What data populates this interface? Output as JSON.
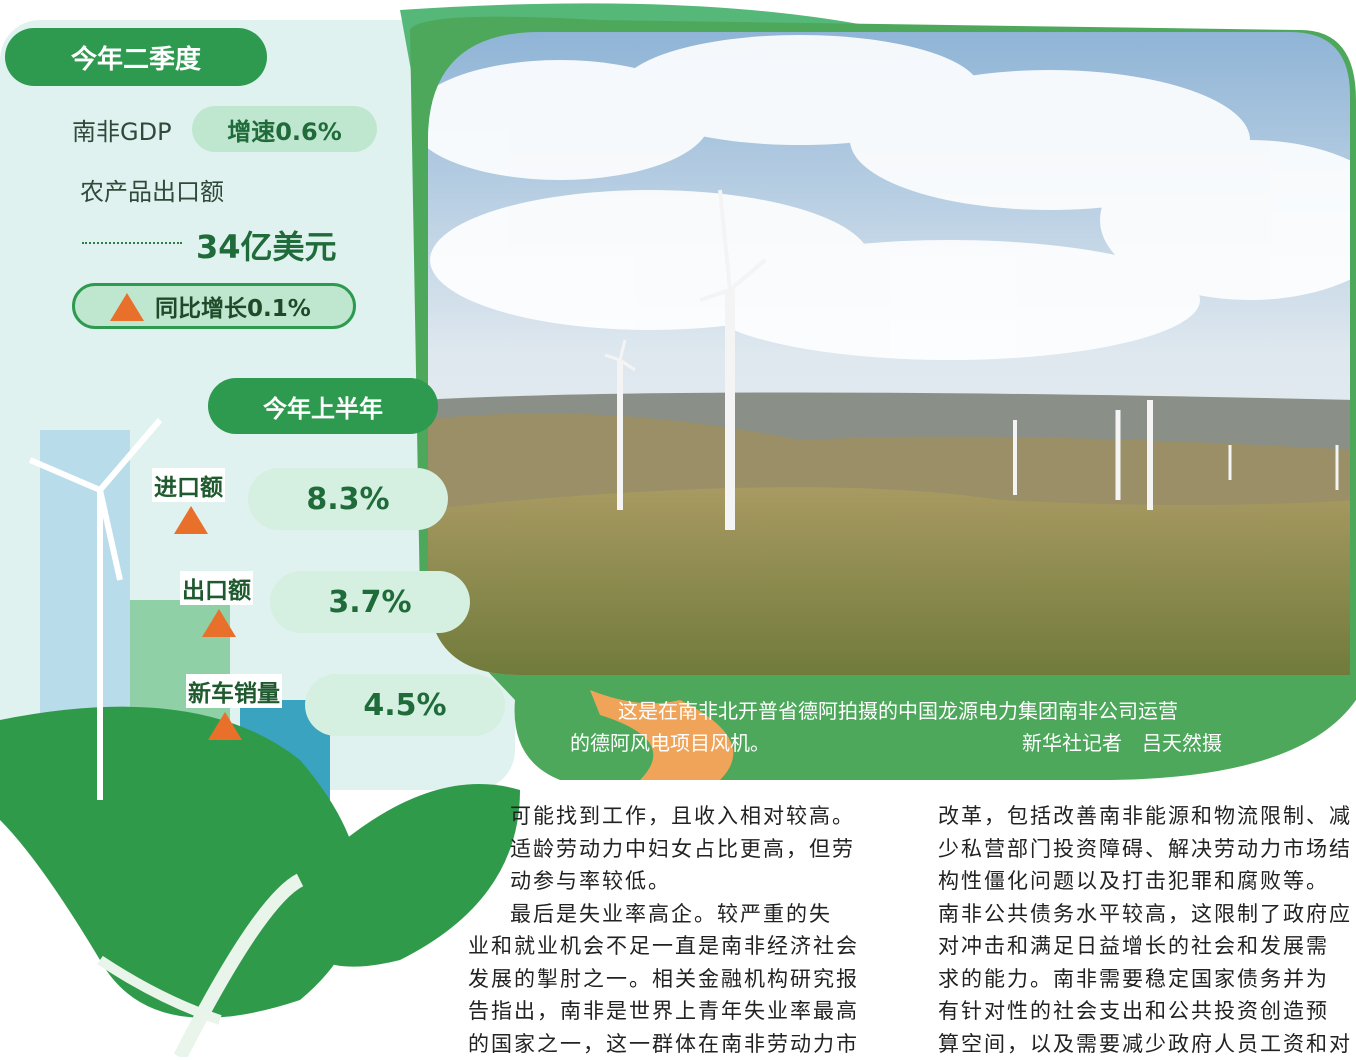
{
  "infographic": {
    "q2": {
      "title": "今年二季度",
      "gdp_label": "南非GDP",
      "gdp_growth": "增速0.6%",
      "agri_label": "农产品出口额",
      "agri_value": "34亿美元",
      "agri_change": "同比增长0.1%"
    },
    "h1": {
      "title": "今年上半年",
      "items": [
        {
          "label": "进口额",
          "value": "8.3%"
        },
        {
          "label": "出口额",
          "value": "3.7%"
        },
        {
          "label": "新车销量",
          "value": "4.5%"
        }
      ]
    }
  },
  "photo": {
    "caption_lines": [
      "这是在南非北开普省德阿拍摄的中国龙源电力集团南非公司运营",
      "的德阿风电项目风机。"
    ],
    "credit": "新华社记者　吕天然摄"
  },
  "article": {
    "columns": [
      [
        "可能找到工作，且收入相对较高。",
        "适龄劳动力中妇女占比更高，但劳",
        "动参与率较低。",
        "最后是失业率高企。较严重的失",
        "业和就业机会不足一直是南非经济社会",
        "发展的掣肘之一。相关金融机构研究报",
        "告指出，南非是世界上青年失业率最高",
        "的国家之一，这一群体在南非劳动力市"
      ],
      [
        "改革，包括改善南非能源和物流限制、减",
        "少私营部门投资障碍、解决劳动力市场结",
        "构性僵化问题以及打击犯罪和腐败等。",
        "南非公共债务水平较高，这限制了政府应",
        "对冲击和满足日益增长的社会和发展需",
        "求的能力。南非需要稳定国家债务并为",
        "有针对性的社会支出和公共投资创造预",
        "算空间，以及需要减少政府人员工资和对"
      ]
    ]
  }
}
